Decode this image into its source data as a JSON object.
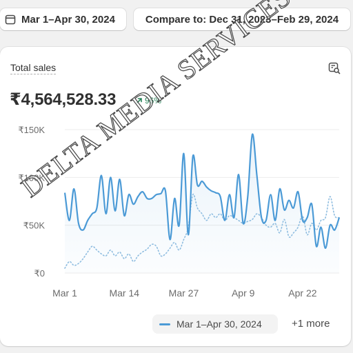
{
  "toolbar": {
    "date_range": "Mar 1–Apr 30, 2024",
    "compare": "Compare to: Dec 31, 2023–Feb 29, 2024"
  },
  "card": {
    "title": "Total sales",
    "total": "₹4,564,528.33",
    "change": "96%",
    "change_color": "#29845a",
    "icon": "chart-search-icon"
  },
  "legend": {
    "primary_label": "Mar 1–Apr 30, 2024",
    "more_label": "+1 more"
  },
  "watermark": "DELTA MEDIA SERVICES",
  "chart_data": {
    "type": "line",
    "ytick_labels": [
      "₹0",
      "₹50K",
      "₹100K",
      "₹150K"
    ],
    "yticks": [
      0,
      50000,
      100000,
      150000
    ],
    "xtick_labels": [
      "Mar 1",
      "Mar 14",
      "Mar 27",
      "Apr 9",
      "Apr 22"
    ],
    "xtick_index": [
      0,
      13,
      26,
      39,
      52
    ],
    "ylim": [
      0,
      150000
    ],
    "grid": true,
    "series": [
      {
        "name": "Mar 1–Apr 30, 2024",
        "style": "solid",
        "color": "#4b9ad6",
        "values": [
          84000,
          55000,
          88000,
          52000,
          45000,
          55000,
          62000,
          68000,
          102000,
          62000,
          100000,
          65000,
          98000,
          60000,
          82000,
          72000,
          80000,
          85000,
          78000,
          78000,
          82000,
          83000,
          86000,
          35000,
          78000,
          50000,
          125000,
          40000,
          122000,
          92000,
          96000,
          90000,
          86000,
          84000,
          80000,
          55000,
          82000,
          58000,
          103000,
          52000,
          80000,
          145000,
          102000,
          58000,
          55000,
          82000,
          55000,
          88000,
          66000,
          76000,
          68000,
          85000,
          55000,
          58000,
          72000,
          28000,
          48000,
          26000,
          50000,
          45000,
          58000
        ]
      },
      {
        "name": "Dec 31, 2023–Feb 29, 2024",
        "style": "dotted",
        "color": "#8fbde0",
        "values": [
          5000,
          12000,
          8000,
          10000,
          15000,
          22000,
          28000,
          24000,
          20000,
          18000,
          24000,
          18000,
          22000,
          15000,
          20000,
          12000,
          18000,
          22000,
          25000,
          30000,
          28000,
          18000,
          20000,
          26000,
          32000,
          24000,
          35000,
          48000,
          82000,
          68000,
          62000,
          55000,
          62000,
          58000,
          62000,
          55000,
          60000,
          58000,
          55000,
          52000,
          54000,
          56000,
          62000,
          58000,
          50000,
          48000,
          52000,
          42000,
          56000,
          38000,
          42000,
          48000,
          60000,
          40000,
          52000,
          45000,
          55000,
          58000,
          80000,
          60000,
          58000
        ]
      }
    ]
  }
}
